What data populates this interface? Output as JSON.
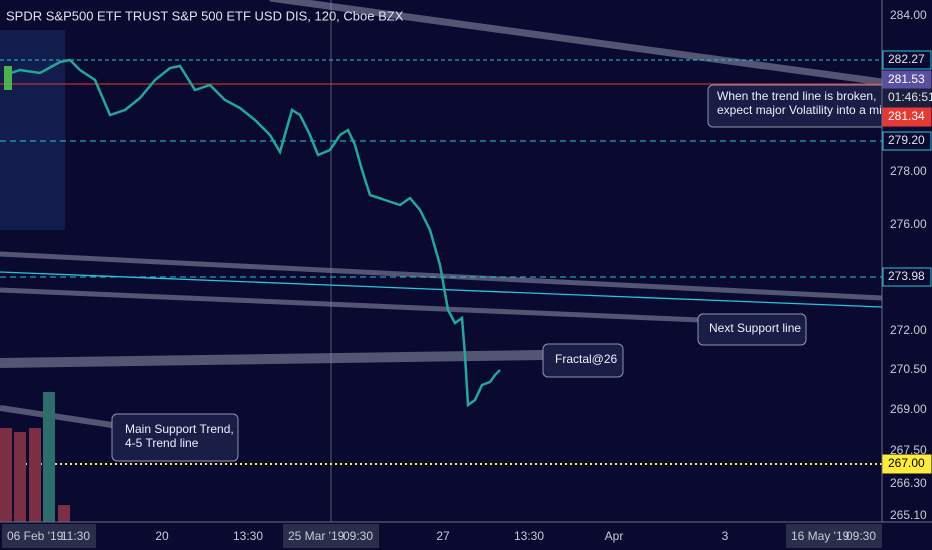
{
  "header": {
    "title": "SPDR S&P500 ETF TRUST S&P 500 ETF USD DIS, 120, Cboe BZX"
  },
  "price_axis": {
    "labels": [
      "284.00",
      "278.00",
      "276.00",
      "272.00",
      "270.50",
      "269.00",
      "267.50",
      "266.30",
      "265.10"
    ]
  },
  "price_tags": {
    "line_a": "282.27",
    "last": "281.53",
    "countdown": "01:46:51",
    "bid": "281.34",
    "line_b": "279.20",
    "line_c": "273.98",
    "line_d": "267.00"
  },
  "time_axis": {
    "labels": [
      "20",
      "13:30",
      "27",
      "13:30",
      "Apr",
      "3"
    ],
    "boxes": [
      {
        "date": "06 Feb '19",
        "time": "11:30"
      },
      {
        "date": "25 Mar '19",
        "time": "09:30"
      },
      {
        "date": "16 May '19",
        "time": "09:30"
      }
    ]
  },
  "annotations": {
    "volatility": [
      "When the trend line is broken,",
      "expect major Volatility into a min"
    ],
    "next_support": "Next Support line",
    "fractal": "Fractal@26",
    "main_support": [
      "Main Support Trend,",
      "4-5 Trend line"
    ]
  }
}
